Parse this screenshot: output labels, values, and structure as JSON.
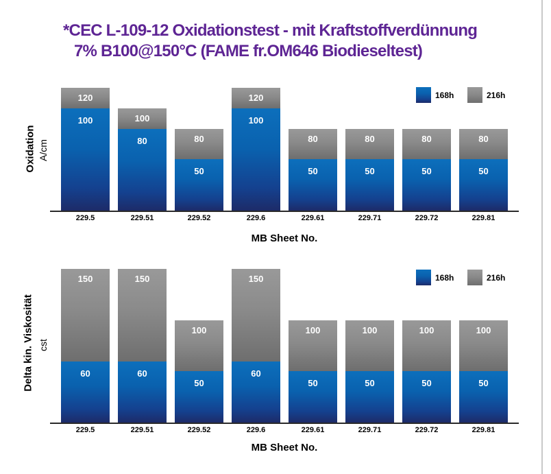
{
  "title": {
    "line1": "*CEC L-109-12 Oxidationstest - mit Kraftstoffverdünnung",
    "line2": "7% B100@150°C (FAME fr.OM646 Biodieseltest)",
    "color": "#5E2594"
  },
  "colors": {
    "series_168h_top": "#0C6FBC",
    "series_168h_bottom": "#1D2B68",
    "series_216h_top": "#999999",
    "series_216h_bottom": "#6E6E6E",
    "axis": "#2A2A2A",
    "page_edge": "#C9C9C9"
  },
  "legend": {
    "entries": [
      {
        "label": "168h",
        "color": "#0C6FBC"
      },
      {
        "label": "216h",
        "color": "#8C8C8C"
      }
    ],
    "position": "top-right"
  },
  "chart_data": [
    {
      "type": "bar",
      "stack_style": "overlay-cumulative",
      "title": "",
      "ylabel": "Oxidation",
      "ylabel_unit": "A/cm",
      "xlabel": "MB Sheet No.",
      "categories": [
        "229.5",
        "229.51",
        "229.52",
        "229.6",
        "229.61",
        "229.71",
        "229.72",
        "229.81"
      ],
      "series": [
        {
          "name": "168h",
          "values": [
            100,
            80,
            50,
            100,
            50,
            50,
            50,
            50
          ]
        },
        {
          "name": "216h",
          "values": [
            120,
            100,
            80,
            120,
            80,
            80,
            80,
            80
          ]
        }
      ],
      "ylim": [
        0,
        120
      ],
      "grid": false,
      "legend_position": "top-right"
    },
    {
      "type": "bar",
      "stack_style": "overlay-cumulative",
      "title": "",
      "ylabel": "Delta kin. Viskosität",
      "ylabel_unit": "cst",
      "xlabel": "MB Sheet No.",
      "categories": [
        "229.5",
        "229.51",
        "229.52",
        "229.6",
        "229.61",
        "229.71",
        "229.72",
        "229.81"
      ],
      "series": [
        {
          "name": "168h",
          "values": [
            60,
            60,
            50,
            60,
            50,
            50,
            50,
            50
          ]
        },
        {
          "name": "216h",
          "values": [
            150,
            150,
            100,
            150,
            100,
            100,
            100,
            100
          ]
        }
      ],
      "ylim": [
        0,
        150
      ],
      "grid": false,
      "legend_position": "top-right"
    }
  ]
}
